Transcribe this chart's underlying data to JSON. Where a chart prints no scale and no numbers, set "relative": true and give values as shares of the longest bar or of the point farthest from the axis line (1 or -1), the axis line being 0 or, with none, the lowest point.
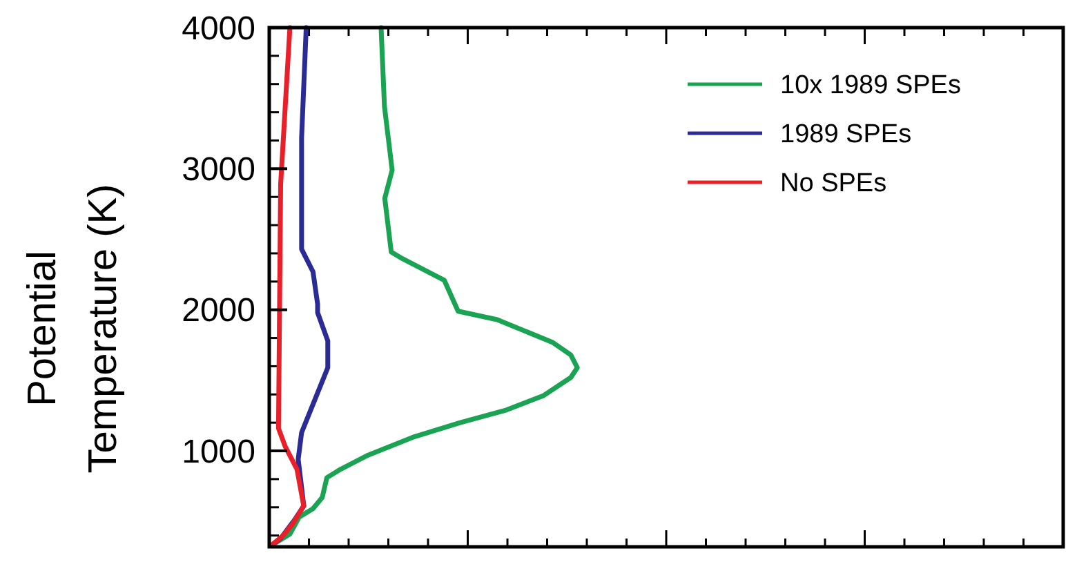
{
  "chart_data": {
    "type": "line",
    "orientation": "horizontal",
    "relative": true,
    "ylabel": "Potential Temperature (K)",
    "ylim": [
      320,
      4000
    ],
    "yticks": [
      1000,
      2000,
      3000,
      4000
    ],
    "legend": "top right",
    "line_style": "solid",
    "series": [
      {
        "name": "10x 1989 SPEs",
        "color": "#1aa352",
        "x": [
          4000,
          3440,
          2990,
          2790,
          2410,
          2370,
          2210,
          1990,
          1930,
          1770,
          1680,
          1590,
          1520,
          1390,
          1290,
          1200,
          1100,
          970,
          870,
          810,
          670,
          590,
          530,
          410,
          330
        ],
        "values": [
          0.363,
          0.374,
          0.399,
          0.375,
          0.396,
          0.426,
          0.568,
          0.613,
          0.74,
          0.919,
          0.979,
          1,
          0.979,
          0.889,
          0.77,
          0.62,
          0.471,
          0.321,
          0.232,
          0.187,
          0.172,
          0.142,
          0.097,
          0.067,
          0.007
        ]
      },
      {
        "name": "1989 SPEs",
        "color": "#2b2b96",
        "x": [
          4000,
          3220,
          2430,
          2270,
          2040,
          1980,
          1780,
          1590,
          1330,
          1130,
          940,
          740,
          610,
          510,
          380,
          330
        ],
        "values": [
          0.12,
          0.105,
          0.105,
          0.142,
          0.157,
          0.157,
          0.19,
          0.19,
          0.142,
          0.105,
          0.094,
          0.105,
          0.112,
          0.082,
          0.037,
          0.007
        ]
      },
      {
        "name": "No SPEs",
        "color": "#e8202a",
        "x": [
          4000,
          2890,
          1160,
          1030,
          870,
          610,
          480,
          400,
          330
        ],
        "values": [
          0.067,
          0.037,
          0.03,
          0.052,
          0.09,
          0.112,
          0.075,
          0.045,
          0.007
        ]
      }
    ]
  }
}
